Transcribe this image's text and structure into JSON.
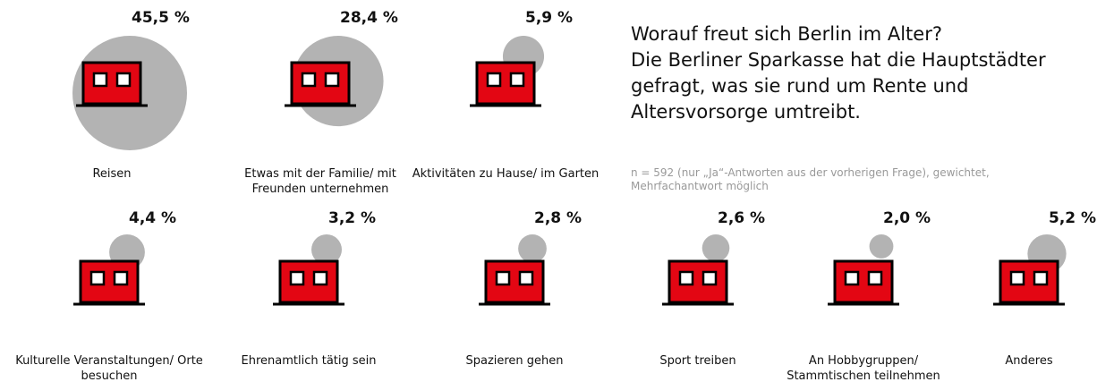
{
  "chart_data": {
    "type": "bubble",
    "title": "Worauf freut sich Berlin im Alter?",
    "subtitle": "Die Berliner Sparkasse hat die Hauptstädter gefragt, was sie rund um Rente und Altersvorsorge umtreibt.",
    "note": "n = 592 (nur „Ja“-Antworten aus der vorherigen Frage), gewichtet, Mehrfachantwort möglich",
    "categories": [
      "Reisen",
      "Etwas mit der Familie/ mit Freunden unternehmen",
      "Aktivitäten zu Hause/ im Garten",
      "Kulturelle Veranstaltungen/ Orte besuchen",
      "Ehrenamtlich tätig sein",
      "Spazieren gehen",
      "Sport treiben",
      "An Hobbygruppen/ Stammtischen teilnehmen",
      "Anderes"
    ],
    "values": [
      45.5,
      28.4,
      5.9,
      4.4,
      3.2,
      2.8,
      2.6,
      2.0,
      5.2
    ],
    "value_labels": [
      "45,5 %",
      "28,4 %",
      "5,9 %",
      "4,4 %",
      "3,2 %",
      "2,8 %",
      "2,6 %",
      "2,0 %",
      "5,2 %"
    ],
    "color": "#b3b3b3"
  }
}
